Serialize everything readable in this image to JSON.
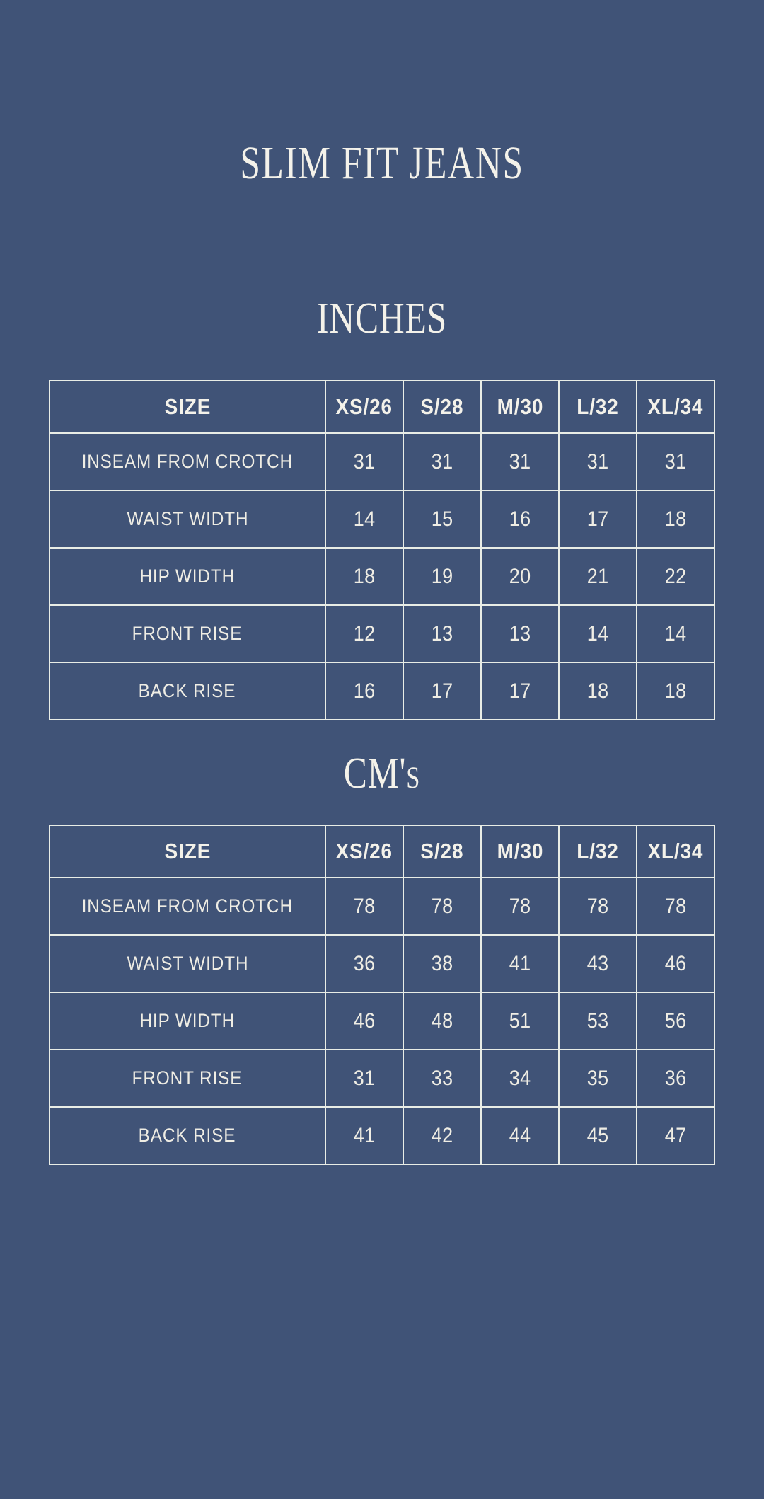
{
  "page_title": "SLIM FIT JEANS",
  "colors": {
    "background": "#405377",
    "foreground": "#F2F0E7",
    "table_border": "#E9EDE6"
  },
  "chart_data": [
    {
      "type": "table",
      "title": "INCHES",
      "columns": [
        "SIZE",
        "XS/26",
        "S/28",
        "M/30",
        "L/32",
        "XL/34"
      ],
      "rows": [
        {
          "label": "INSEAM FROM CROTCH",
          "values": [
            "31",
            "31",
            "31",
            "31",
            "31"
          ]
        },
        {
          "label": "WAIST WIDTH",
          "values": [
            "14",
            "15",
            "16",
            "17",
            "18"
          ]
        },
        {
          "label": "HIP WIDTH",
          "values": [
            "18",
            "19",
            "20",
            "21",
            "22"
          ]
        },
        {
          "label": "FRONT RISE",
          "values": [
            "12",
            "13",
            "13",
            "14",
            "14"
          ]
        },
        {
          "label": "BACK RISE",
          "values": [
            "16",
            "17",
            "17",
            "18",
            "18"
          ]
        }
      ]
    },
    {
      "type": "table",
      "title": "CM's",
      "columns": [
        "SIZE",
        "XS/26",
        "S/28",
        "M/30",
        "L/32",
        "XL/34"
      ],
      "rows": [
        {
          "label": "INSEAM FROM CROTCH",
          "values": [
            "78",
            "78",
            "78",
            "78",
            "78"
          ]
        },
        {
          "label": "WAIST WIDTH",
          "values": [
            "36",
            "38",
            "41",
            "43",
            "46"
          ]
        },
        {
          "label": "HIP WIDTH",
          "values": [
            "46",
            "48",
            "51",
            "53",
            "56"
          ]
        },
        {
          "label": "FRONT RISE",
          "values": [
            "31",
            "33",
            "34",
            "35",
            "36"
          ]
        },
        {
          "label": "BACK RISE",
          "values": [
            "41",
            "42",
            "44",
            "45",
            "47"
          ]
        }
      ]
    }
  ]
}
